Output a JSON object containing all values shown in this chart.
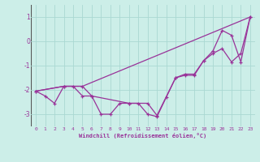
{
  "xlabel": "Windchill (Refroidissement éolien,°C)",
  "bg_color": "#cceee8",
  "grid_color": "#aad8d2",
  "line_color": "#993399",
  "xlim": [
    -0.5,
    23.5
  ],
  "ylim": [
    -3.5,
    1.5
  ],
  "xticks": [
    0,
    1,
    2,
    3,
    4,
    5,
    6,
    7,
    8,
    9,
    10,
    11,
    12,
    13,
    14,
    15,
    16,
    17,
    18,
    19,
    20,
    21,
    22,
    23
  ],
  "yticks": [
    -3,
    -2,
    -1,
    0,
    1
  ],
  "line1_x": [
    0,
    1,
    2,
    3,
    4,
    5,
    6,
    7,
    8,
    9,
    10,
    11,
    12,
    13,
    14,
    15,
    16,
    17,
    18,
    19,
    20,
    21,
    22,
    23
  ],
  "line1_y": [
    -2.05,
    -2.25,
    -2.55,
    -1.85,
    -1.85,
    -2.25,
    -2.25,
    -3.0,
    -3.0,
    -2.55,
    -2.55,
    -2.55,
    -3.0,
    -3.1,
    -2.3,
    -1.5,
    -1.4,
    -1.4,
    -0.8,
    -0.5,
    -0.3,
    -0.85,
    -0.5,
    1.0
  ],
  "line2_x": [
    0,
    3,
    5,
    23
  ],
  "line2_y": [
    -2.05,
    -1.85,
    -1.85,
    1.0
  ],
  "line3_x": [
    0,
    3,
    5,
    6,
    10,
    12,
    13,
    15,
    16,
    17,
    18,
    19,
    20,
    21,
    22,
    23
  ],
  "line3_y": [
    -2.05,
    -1.85,
    -1.85,
    -2.25,
    -2.55,
    -2.55,
    -3.05,
    -1.5,
    -1.35,
    -1.35,
    -0.8,
    -0.4,
    0.45,
    0.25,
    -0.85,
    1.0
  ]
}
